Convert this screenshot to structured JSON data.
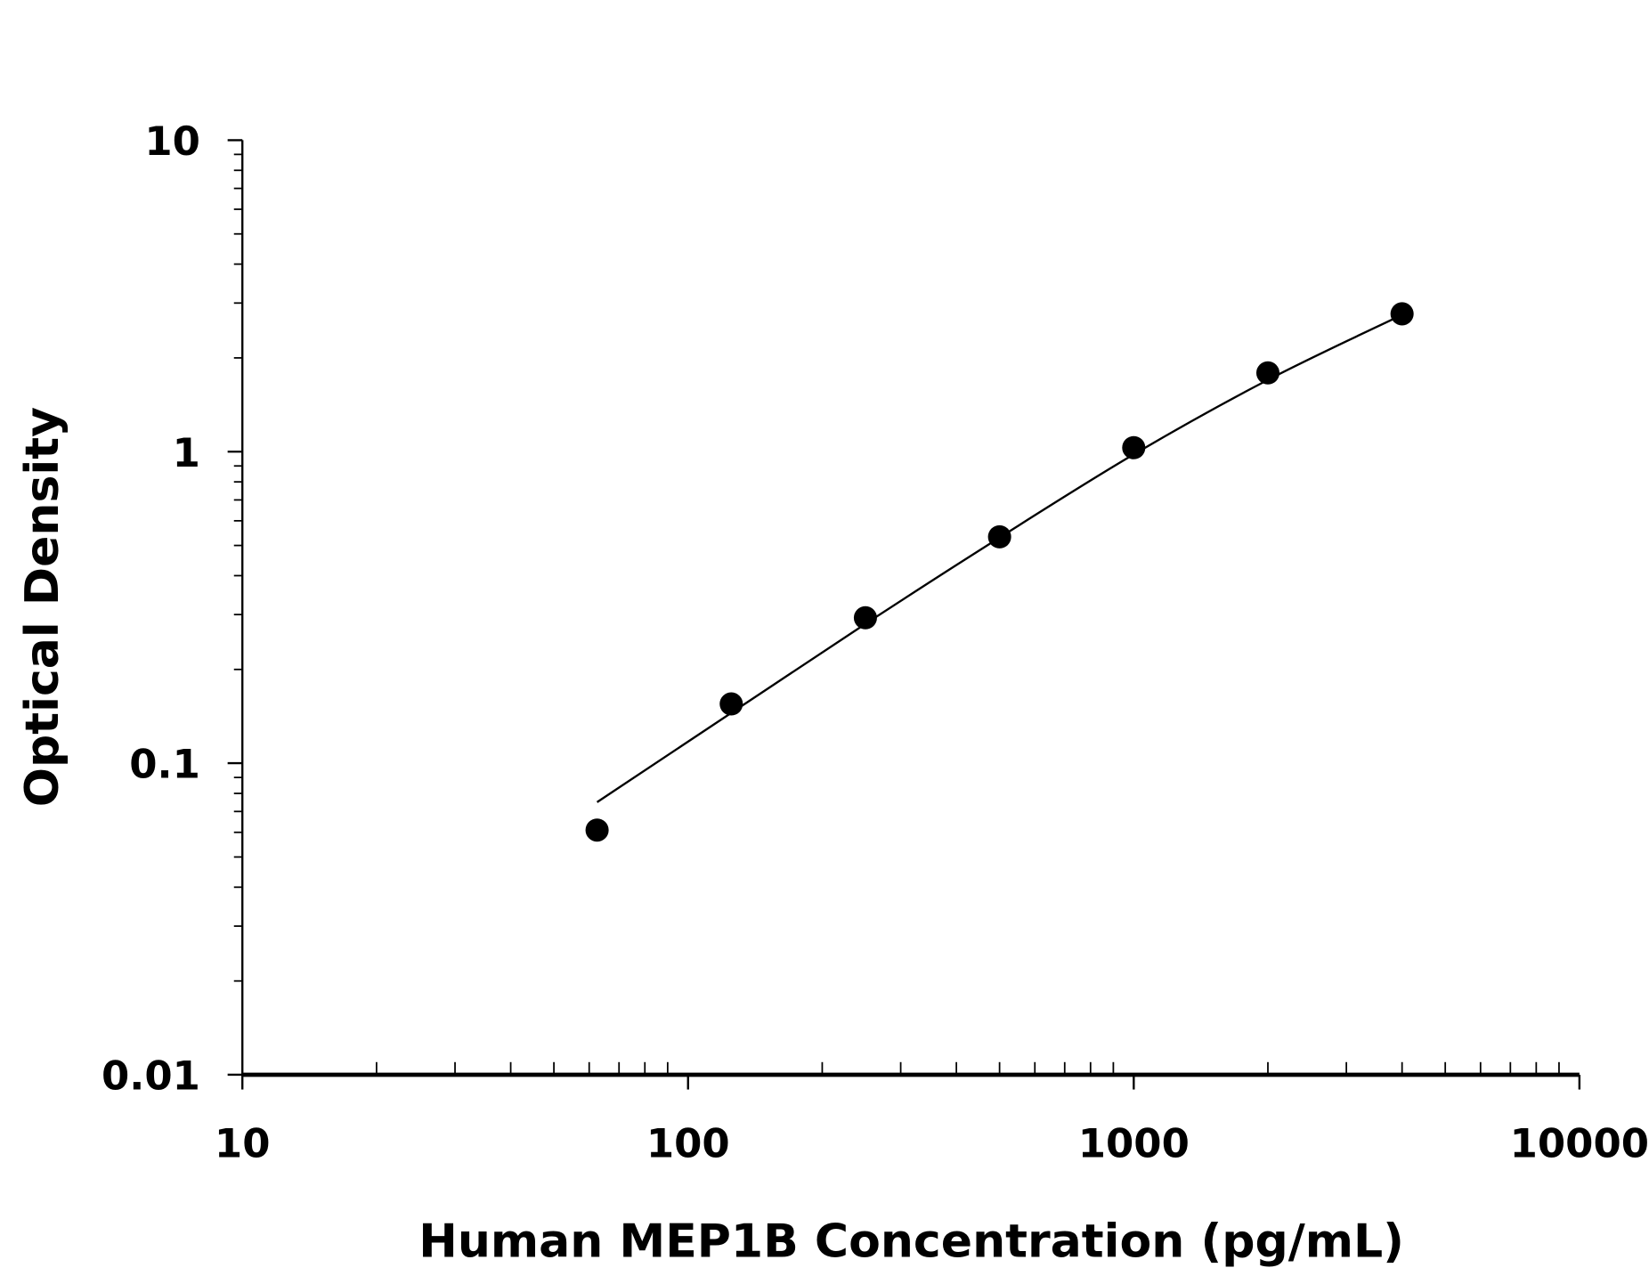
{
  "chart_data": {
    "type": "scatter",
    "title": "",
    "xlabel": "Human MEP1B Concentration (pg/mL)",
    "ylabel": "Optical Density",
    "xscale": "log",
    "yscale": "log",
    "xlim": [
      10,
      10000
    ],
    "ylim": [
      0.01,
      10
    ],
    "xticks": [
      10,
      100,
      1000,
      10000
    ],
    "xtick_labels": [
      "10",
      "100",
      "1000",
      "10000"
    ],
    "yticks": [
      0.01,
      0.1,
      1,
      10
    ],
    "ytick_labels": [
      "0.01",
      "0.1",
      "1",
      "10"
    ],
    "grid": false,
    "legend": "none",
    "marker_color": "#000000",
    "points": {
      "x": [
        62.5,
        125,
        250,
        500,
        1000,
        2000,
        4000
      ],
      "y": [
        0.061,
        0.155,
        0.293,
        0.533,
        1.03,
        1.79,
        2.77
      ]
    },
    "fit_curve": {
      "x": [
        62.5,
        125,
        250,
        500,
        1000,
        2000,
        4000
      ],
      "y": [
        0.075,
        0.145,
        0.28,
        0.53,
        0.98,
        1.7,
        2.75
      ]
    }
  }
}
